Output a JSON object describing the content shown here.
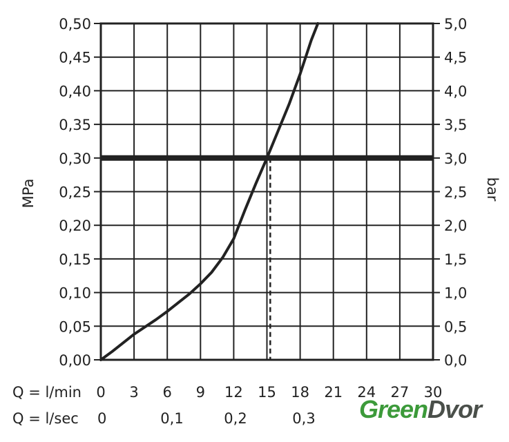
{
  "chart_data": {
    "type": "line",
    "x_rows": [
      {
        "label": "Q = l/min",
        "ticks": [
          "0",
          "3",
          "6",
          "9",
          "12",
          "15",
          "18",
          "21",
          "24",
          "27",
          "30"
        ],
        "values": [
          0,
          3,
          6,
          9,
          12,
          15,
          18,
          21,
          24,
          27,
          30
        ]
      },
      {
        "label": "Q = l/sec",
        "ticks": [
          "0",
          "0,1",
          "0,2",
          "0,3"
        ],
        "values": [
          0,
          0.1,
          0.2,
          0.3
        ]
      }
    ],
    "xlim": [
      0,
      30
    ],
    "ylabel_left": "MPa",
    "ylabel_right": "bar",
    "ylim_left": [
      0,
      0.5
    ],
    "ylim_right": [
      0,
      5
    ],
    "left_ticks": [
      "0,00",
      "0,05",
      "0,10",
      "0,15",
      "0,20",
      "0,25",
      "0,30",
      "0,35",
      "0,40",
      "0,45",
      "0,50"
    ],
    "right_ticks": [
      "0,0",
      "0,5",
      "1,0",
      "1,5",
      "2,0",
      "2,5",
      "3,0",
      "3,5",
      "4,0",
      "4,5",
      "5,0"
    ],
    "grid": true,
    "series": [
      {
        "x": [
          0,
          1,
          3,
          5,
          6,
          7,
          8,
          9,
          10,
          11,
          12,
          13,
          14,
          15,
          16,
          17,
          18,
          19,
          19.6
        ],
        "y": [
          0,
          0.012,
          0.038,
          0.06,
          0.072,
          0.085,
          0.098,
          0.113,
          0.13,
          0.152,
          0.18,
          0.222,
          0.262,
          0.3,
          0.34,
          0.38,
          0.425,
          0.475,
          0.5
        ]
      }
    ],
    "reference_line": {
      "y": 0.3
    },
    "marker_line": {
      "x": 15.3,
      "y": 0.3
    },
    "color": "#222222"
  },
  "logo": {
    "part1": "Green",
    "part2": "Dvor"
  }
}
